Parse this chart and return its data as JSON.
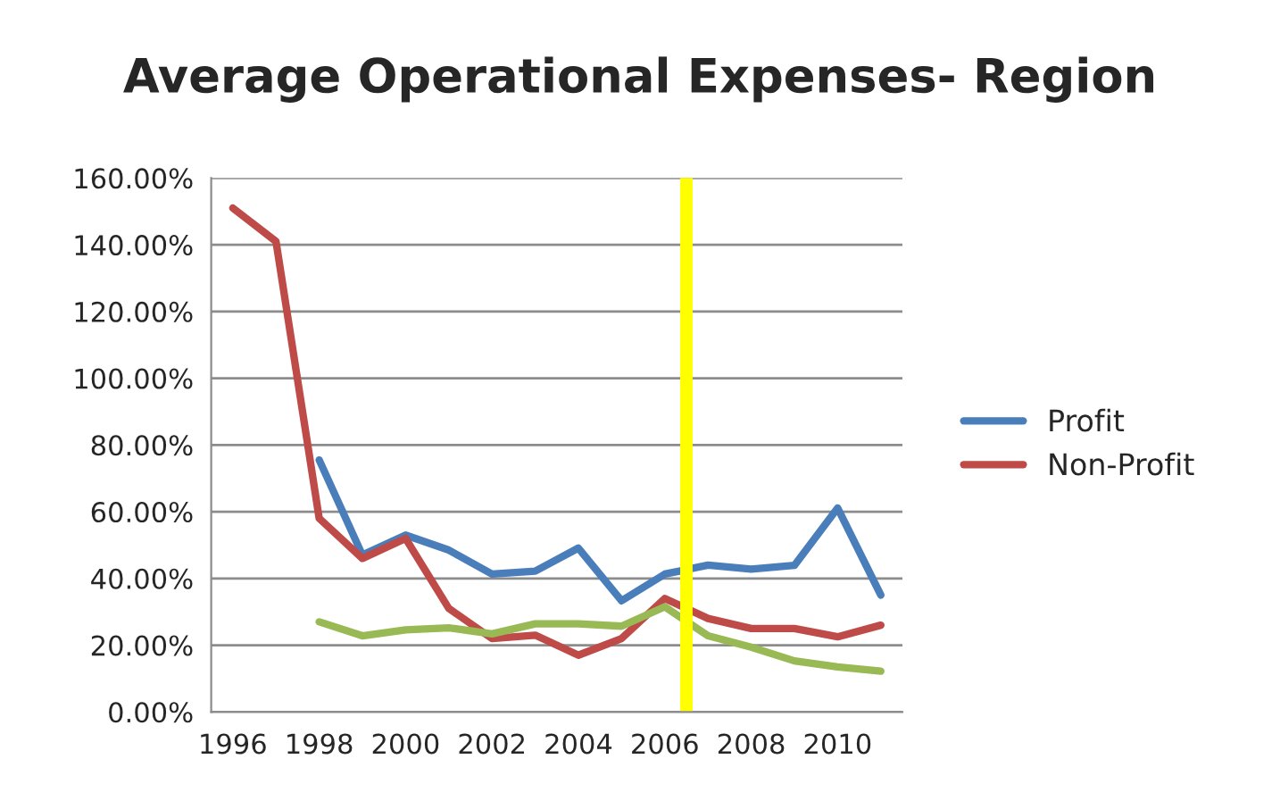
{
  "chart_data": {
    "type": "line",
    "title": "Average Operational Expenses- Region",
    "x": [
      1996,
      1997,
      1998,
      1999,
      2000,
      2001,
      2002,
      2003,
      2004,
      2005,
      2006,
      2007,
      2008,
      2009,
      2010,
      2011
    ],
    "series": [
      {
        "name": "Profit",
        "color": "#4a7ebb",
        "values": [
          null,
          null,
          75.5,
          47,
          53,
          48.5,
          41.3,
          42.2,
          49.1,
          33.3,
          41.3,
          44,
          42.8,
          43.9,
          61.1,
          35
        ]
      },
      {
        "name": "Non-Profit",
        "color": "#be4b48",
        "values": [
          151,
          141,
          58,
          46,
          52,
          31,
          22,
          23,
          17,
          22,
          34,
          28,
          25,
          25,
          22.5,
          26
        ]
      },
      {
        "color": "#98b954",
        "values": [
          null,
          null,
          27,
          22.8,
          24.6,
          25.2,
          23.4,
          26.4,
          26.4,
          25.7,
          31.5,
          22.8,
          19.4,
          15.3,
          13.5,
          12.2
        ]
      }
    ],
    "xlim": [
      1995.5,
      2011.5
    ],
    "xticks": [
      1996,
      1998,
      2000,
      2002,
      2004,
      2006,
      2008,
      2010
    ],
    "ylim": [
      0,
      160
    ],
    "yticks": [
      {
        "value": 0,
        "label": "0.00%"
      },
      {
        "value": 20,
        "label": "20.00%"
      },
      {
        "value": 40,
        "label": "40.00%"
      },
      {
        "value": 60,
        "label": "60.00%"
      },
      {
        "value": 80,
        "label": "80.00%"
      },
      {
        "value": 100,
        "label": "100.00%"
      },
      {
        "value": 120,
        "label": "120.00%"
      },
      {
        "value": 140,
        "label": "140.00%"
      },
      {
        "value": 160,
        "label": "160.00%"
      }
    ],
    "ref_lines": [
      {
        "axis": "x",
        "value": 2006.5,
        "color": "#ffff00"
      }
    ],
    "grid": "y",
    "legend": "right",
    "marker": "none",
    "line_style": "solid"
  }
}
